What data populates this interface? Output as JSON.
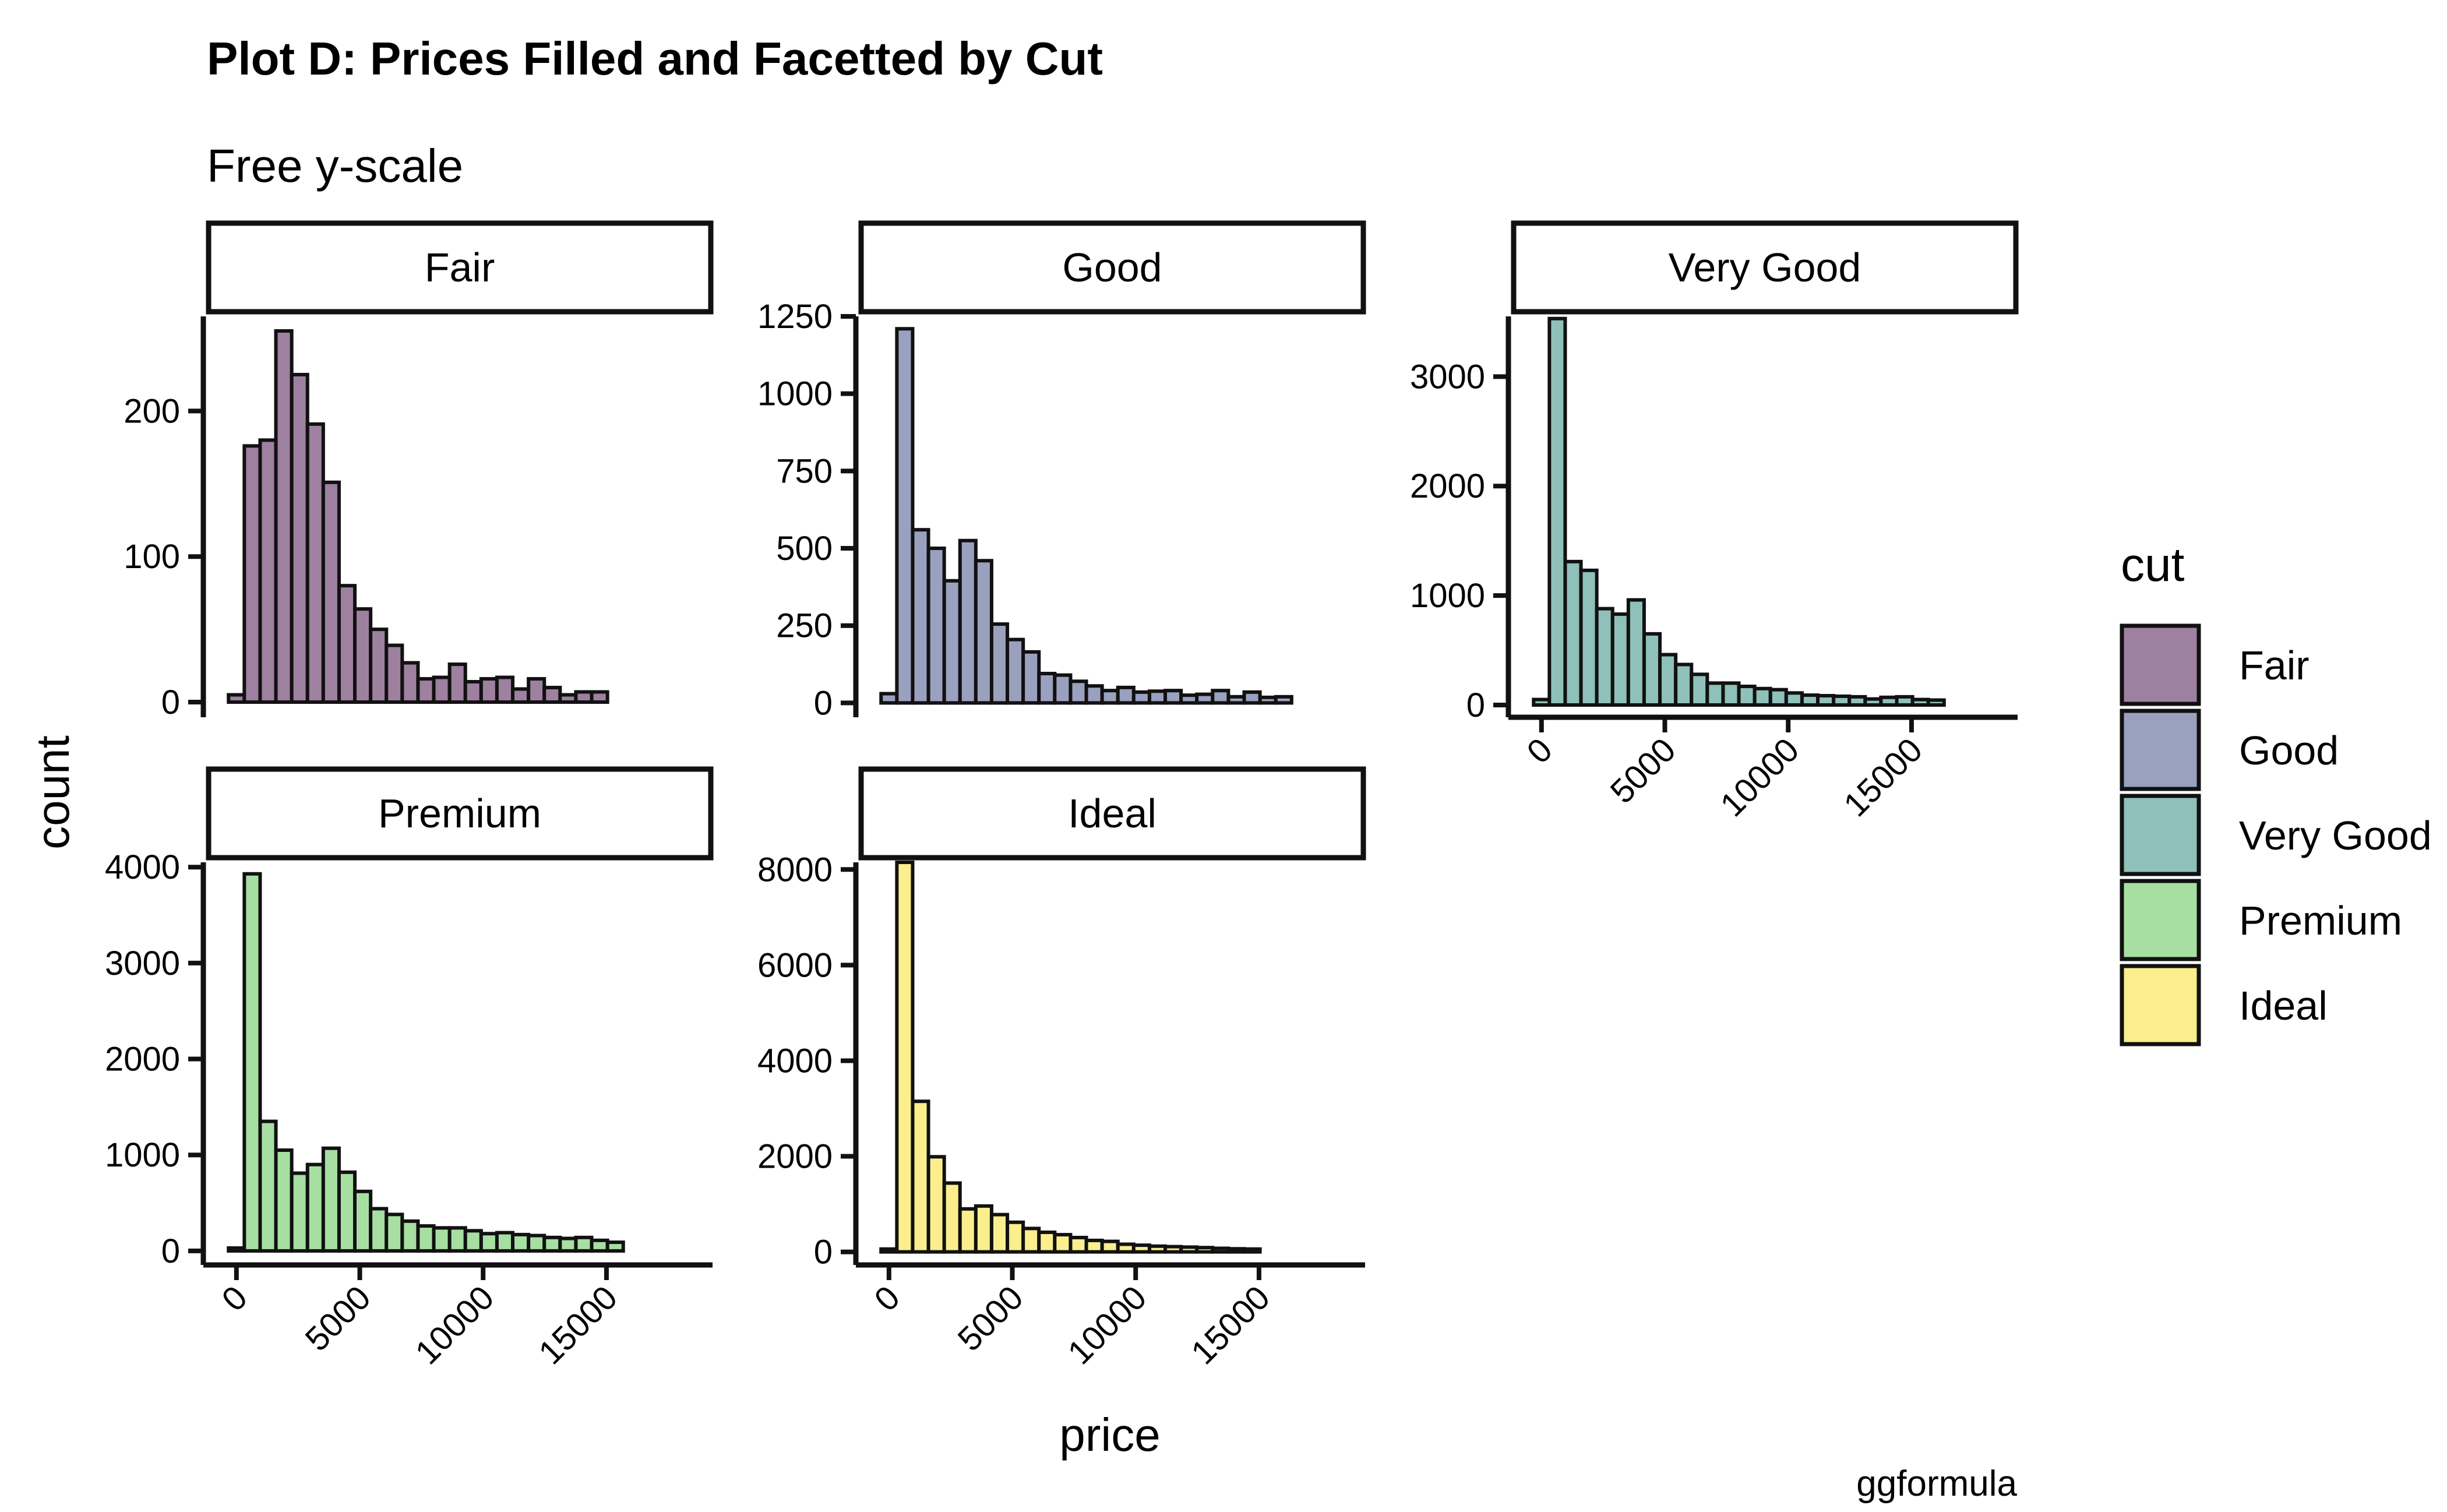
{
  "title": "Plot D: Prices Filled and Facetted by Cut",
  "subtitle": "Free y-scale",
  "caption": "ggformula",
  "chart_data": {
    "type": "histogram",
    "xlabel": "price",
    "ylabel": "count",
    "bin_width": 640,
    "bin_centers": [
      0,
      640,
      1280,
      1920,
      2560,
      3200,
      3840,
      4480,
      5120,
      5760,
      6400,
      7040,
      7680,
      8320,
      8960,
      9600,
      10240,
      10880,
      11520,
      12160,
      12800,
      13440,
      14080,
      14720,
      15360,
      16000,
      16640,
      17280,
      17920,
      18560
    ],
    "x_ticks": [
      0,
      5000,
      10000,
      15000
    ],
    "x_tick_labels": [
      "0",
      "5000",
      "10000",
      "15000"
    ],
    "xlim": [
      -1200,
      19300
    ],
    "grid": false,
    "legend": {
      "title": "cut",
      "position": "right",
      "entries": [
        {
          "label": "Fair",
          "color": "#9E80A0"
        },
        {
          "label": "Good",
          "color": "#9AA1BF"
        },
        {
          "label": "Very Good",
          "color": "#8FC0BA"
        },
        {
          "label": "Premium",
          "color": "#A7DFA3"
        },
        {
          "label": "Ideal",
          "color": "#FBEE8C"
        }
      ]
    },
    "facets": [
      {
        "name": "Fair",
        "color": "#9E80A0",
        "ylim": [
          -8,
          265
        ],
        "y_ticks": [
          0,
          100,
          200
        ],
        "y_tick_labels": [
          "0",
          "100",
          "200"
        ],
        "counts": [
          5,
          176,
          180,
          255,
          225,
          191,
          151,
          80,
          64,
          50,
          39,
          27,
          16,
          17,
          26,
          14,
          16,
          17,
          9,
          16,
          10,
          5,
          7,
          7,
          0,
          0,
          0,
          0,
          0,
          0
        ]
      },
      {
        "name": "Good",
        "color": "#9AA1BF",
        "ylim": [
          -35,
          1250
        ],
        "y_ticks": [
          0,
          250,
          500,
          750,
          1000,
          1250
        ],
        "y_tick_labels": [
          "0",
          "250",
          "500",
          "750",
          "1000",
          "1250"
        ],
        "counts": [
          30,
          1210,
          560,
          500,
          395,
          525,
          460,
          255,
          205,
          165,
          95,
          90,
          70,
          55,
          40,
          50,
          35,
          38,
          40,
          25,
          28,
          40,
          20,
          35,
          18,
          20,
          0,
          0,
          0,
          0
        ]
      },
      {
        "name": "Very Good",
        "color": "#8FC0BA",
        "ylim": [
          -80,
          3550
        ],
        "y_ticks": [
          0,
          1000,
          2000,
          3000
        ],
        "y_tick_labels": [
          "0",
          "1000",
          "2000",
          "3000"
        ],
        "counts": [
          50,
          3530,
          1310,
          1230,
          880,
          830,
          960,
          650,
          460,
          370,
          280,
          200,
          200,
          170,
          150,
          140,
          110,
          90,
          85,
          80,
          75,
          55,
          70,
          75,
          50,
          45,
          0,
          0,
          0,
          0
        ]
      },
      {
        "name": "Premium",
        "color": "#A7DFA3",
        "ylim": [
          -110,
          4050
        ],
        "y_ticks": [
          0,
          1000,
          2000,
          3000,
          4000
        ],
        "y_tick_labels": [
          "0",
          "1000",
          "2000",
          "3000",
          "4000"
        ],
        "counts": [
          30,
          3930,
          1350,
          1050,
          810,
          900,
          1070,
          820,
          620,
          440,
          380,
          310,
          260,
          240,
          240,
          210,
          180,
          190,
          170,
          160,
          140,
          130,
          140,
          110,
          90,
          0,
          0,
          0,
          0,
          0
        ]
      },
      {
        "name": "Ideal",
        "color": "#FBEE8C",
        "ylim": [
          -200,
          8150
        ],
        "y_ticks": [
          0,
          2000,
          4000,
          6000,
          8000
        ],
        "y_tick_labels": [
          "0",
          "2000",
          "4000",
          "6000",
          "8000"
        ],
        "counts": [
          60,
          8150,
          3150,
          1990,
          1440,
          900,
          960,
          780,
          620,
          490,
          410,
          360,
          300,
          240,
          220,
          160,
          140,
          120,
          110,
          100,
          90,
          75,
          65,
          60,
          0,
          0,
          0,
          0,
          0,
          0
        ]
      }
    ]
  }
}
